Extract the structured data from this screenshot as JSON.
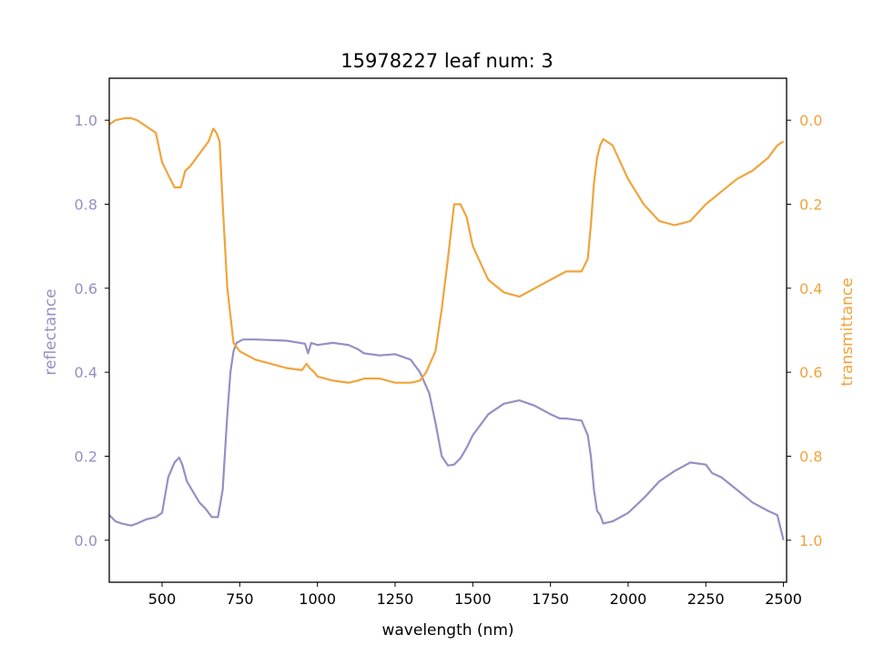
{
  "chart_data": {
    "type": "line",
    "title": "15978227 leaf num: 3",
    "xlabel": "wavelength (nm)",
    "ylabel_left": "reflectance",
    "ylabel_right": "transmittance",
    "xlim": [
      330,
      2510
    ],
    "ylim_left": [
      -0.1,
      1.1
    ],
    "ylim_right": [
      1.1,
      -0.1
    ],
    "right_axis_inverted": true,
    "grid": false,
    "x_ticks": [
      500,
      750,
      1000,
      1250,
      1500,
      1750,
      2000,
      2250,
      2500
    ],
    "left_ticks": [
      0.0,
      0.2,
      0.4,
      0.6,
      0.8,
      1.0
    ],
    "right_ticks": [
      0.0,
      0.2,
      0.4,
      0.6,
      0.8,
      1.0
    ],
    "series": [
      {
        "key": "reflectance",
        "axis": "left",
        "color": "#9590c4",
        "x": [
          330,
          350,
          370,
          400,
          420,
          450,
          480,
          500,
          520,
          540,
          555,
          565,
          580,
          600,
          620,
          640,
          660,
          680,
          695,
          710,
          720,
          730,
          740,
          760,
          800,
          900,
          960,
          970,
          980,
          1000,
          1050,
          1100,
          1130,
          1150,
          1200,
          1250,
          1300,
          1330,
          1360,
          1380,
          1400,
          1420,
          1440,
          1460,
          1480,
          1500,
          1550,
          1600,
          1650,
          1700,
          1750,
          1780,
          1800,
          1850,
          1870,
          1880,
          1890,
          1900,
          1910,
          1920,
          1950,
          2000,
          2050,
          2100,
          2150,
          2200,
          2250,
          2270,
          2300,
          2350,
          2400,
          2450,
          2480,
          2500
        ],
        "y": [
          0.06,
          0.045,
          0.04,
          0.035,
          0.04,
          0.05,
          0.055,
          0.065,
          0.15,
          0.185,
          0.197,
          0.18,
          0.14,
          0.115,
          0.09,
          0.075,
          0.055,
          0.055,
          0.12,
          0.3,
          0.4,
          0.45,
          0.47,
          0.478,
          0.478,
          0.475,
          0.468,
          0.445,
          0.47,
          0.465,
          0.47,
          0.465,
          0.455,
          0.445,
          0.44,
          0.443,
          0.43,
          0.4,
          0.35,
          0.28,
          0.2,
          0.178,
          0.18,
          0.195,
          0.22,
          0.25,
          0.3,
          0.325,
          0.333,
          0.32,
          0.3,
          0.29,
          0.29,
          0.285,
          0.25,
          0.2,
          0.12,
          0.07,
          0.06,
          0.04,
          0.045,
          0.065,
          0.1,
          0.14,
          0.165,
          0.185,
          0.18,
          0.16,
          0.15,
          0.12,
          0.09,
          0.07,
          0.06,
          0.0
        ]
      },
      {
        "key": "transmittance",
        "axis": "right",
        "color": "#f0a43c",
        "x": [
          330,
          350,
          380,
          400,
          420,
          460,
          480,
          500,
          520,
          540,
          560,
          575,
          590,
          610,
          630,
          650,
          665,
          675,
          685,
          695,
          710,
          730,
          750,
          800,
          850,
          900,
          950,
          965,
          975,
          990,
          1000,
          1050,
          1100,
          1130,
          1150,
          1200,
          1250,
          1300,
          1330,
          1350,
          1380,
          1400,
          1420,
          1440,
          1460,
          1480,
          1500,
          1550,
          1600,
          1650,
          1700,
          1750,
          1800,
          1850,
          1870,
          1880,
          1890,
          1900,
          1910,
          1920,
          1950,
          2000,
          2050,
          2100,
          2150,
          2200,
          2250,
          2300,
          2350,
          2400,
          2450,
          2480,
          2500
        ],
        "y": [
          0.01,
          0.0,
          -0.005,
          -0.005,
          0.0,
          0.02,
          0.03,
          0.1,
          0.13,
          0.16,
          0.16,
          0.12,
          0.11,
          0.09,
          0.07,
          0.05,
          0.02,
          0.03,
          0.05,
          0.2,
          0.4,
          0.53,
          0.55,
          0.57,
          0.58,
          0.59,
          0.595,
          0.58,
          0.59,
          0.6,
          0.61,
          0.62,
          0.625,
          0.62,
          0.615,
          0.615,
          0.625,
          0.625,
          0.62,
          0.6,
          0.55,
          0.45,
          0.33,
          0.2,
          0.2,
          0.23,
          0.3,
          0.38,
          0.41,
          0.42,
          0.4,
          0.38,
          0.36,
          0.36,
          0.33,
          0.25,
          0.15,
          0.09,
          0.06,
          0.045,
          0.06,
          0.14,
          0.2,
          0.24,
          0.25,
          0.24,
          0.2,
          0.17,
          0.14,
          0.12,
          0.09,
          0.06,
          0.05
        ]
      }
    ]
  }
}
